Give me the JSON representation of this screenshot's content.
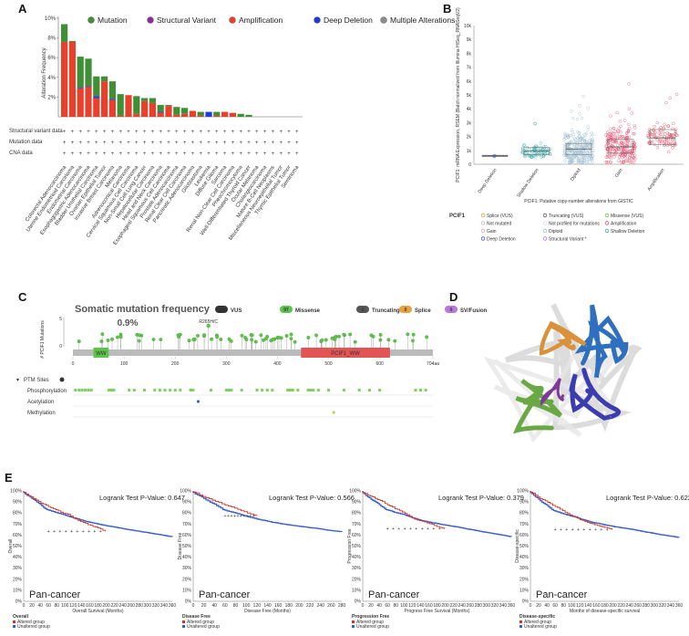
{
  "panels": {
    "A": "A",
    "B": "B",
    "C": "C",
    "D": "D",
    "E": "E"
  },
  "panelA": {
    "legend": [
      {
        "label": "Mutation",
        "color": "#3e8f35"
      },
      {
        "label": "Structural Variant",
        "color": "#8b2c9b"
      },
      {
        "label": "Amplification",
        "color": "#e8402a"
      },
      {
        "label": "Deep Deletion",
        "color": "#1f3bdb"
      },
      {
        "label": "Multiple Alterations",
        "color": "#8c8c8c"
      }
    ],
    "row_labels": [
      "Structural variant data",
      "Mutation data",
      "CNA data"
    ],
    "ylabel": "Alteration Frequency"
  },
  "chart_data": [
    {
      "type": "bar",
      "title": "",
      "ylabel": "Alteration Frequency",
      "ylim": [
        0,
        10
      ],
      "yticks": [
        "10%",
        "8%",
        "6%",
        "4%",
        "2%"
      ],
      "categories": [
        "Colorectal Adenocarcinoma",
        "Uterine Endometrioid Carcinoma",
        "Endometrial Carcinoma",
        "Esophagogastric Adenocarcinoma",
        "Bladder Urothelial Carcinoma",
        "Ovarian Epithelial Tumor",
        "Invasive Breast Carcinoma",
        "Melanoma",
        "Adrenocortical Carcinoma",
        "Cervical Squamous Cell Carcinoma",
        "Non-Small Cell Lung Cancer",
        "Hepatocellular Carcinoma",
        "Head and Neck Carcinoma",
        "Esophageal Squamous Cell Carcinoma",
        "Prostate Adenocarcinoma",
        "Renal Clear Cell Carcinoma",
        "Pancreatic Adenocarcinoma",
        "Glioblastoma",
        "Leukemia",
        "Diffuse Glioma",
        "Sarcoma",
        "Renal Non-Clear Cell Carcinoma",
        "Pheochromocytoma",
        "Well-Differentiated Thyroid Cancer",
        "Ocular Melanoma",
        "Cholangiocarcinoma",
        "Mature B-Cell Neoplasms",
        "Miscellaneous Neuroepithelial Tumor",
        "Thymic Epithelial Tumor",
        "Seminoma"
      ],
      "series": [
        {
          "name": "Amplification",
          "color": "#e8402a",
          "values": [
            7.6,
            7.6,
            2.9,
            3.0,
            1.9,
            3.6,
            1.7,
            0.1,
            2.2,
            0.3,
            1.6,
            1.4,
            0.4,
            1.1,
            0.2,
            0.3,
            0.6,
            0.1,
            0.0,
            0.1,
            0.5,
            0.4,
            0.0,
            0.0,
            0.0,
            0,
            0,
            0,
            0,
            0
          ]
        },
        {
          "name": "Deep Deletion",
          "color": "#1f3bdb",
          "values": [
            0,
            0,
            0.1,
            0.0,
            0.2,
            0.0,
            0.1,
            0,
            0,
            0,
            0,
            0,
            0.1,
            0,
            0,
            0,
            0,
            0,
            0.5,
            0,
            0,
            0,
            0,
            0,
            0,
            0,
            0,
            0,
            0,
            0
          ]
        },
        {
          "name": "Structural Variant",
          "color": "#8b2c9b",
          "values": [
            0,
            0,
            0,
            0.1,
            0,
            0,
            0,
            0,
            0,
            0,
            0,
            0,
            0,
            0,
            0,
            0,
            0,
            0,
            0,
            0,
            0,
            0,
            0,
            0,
            0,
            0,
            0,
            0,
            0,
            0
          ]
        },
        {
          "name": "Mutation",
          "color": "#3e8f35",
          "values": [
            1.8,
            0.1,
            3.1,
            2.8,
            2.0,
            0.5,
            1.8,
            2.2,
            0.0,
            1.8,
            0.3,
            0.5,
            0.7,
            0.1,
            0.8,
            0.6,
            0.0,
            0.4,
            0.0,
            0.4,
            0.0,
            0.0,
            0.3,
            0.2,
            0.0,
            0,
            0,
            0,
            0,
            0
          ]
        }
      ]
    },
    {
      "type": "scatter",
      "title": "",
      "ylabel": "PCIF1: mRNA Expression, RSEM (Batch normalized from Illumina HiSeq_RNASeqV2)",
      "xlabel": "PCIF1: Putative copy-number alterations from GISTIC",
      "categories": [
        "Deep Deletion",
        "Shallow Deletion",
        "Diploid",
        "Gain",
        "Amplification"
      ],
      "yticks": [
        "10k",
        "9k",
        "8k",
        "7k",
        "6k",
        "5k",
        "4k",
        "3k",
        "2k",
        "1k",
        "0"
      ],
      "ylim": [
        0,
        10000
      ],
      "medians": [
        600,
        950,
        1100,
        1250,
        1900
      ],
      "q1": [
        550,
        700,
        700,
        800,
        1400
      ],
      "q3": [
        650,
        1200,
        1500,
        1800,
        2500
      ],
      "legend_title": "PCIF1",
      "legend": [
        "Splice (VUS)",
        "Truncating (VUS)",
        "Missense (VUS)",
        "Not mutated",
        "Not profiled for mutations",
        "Amplification",
        "Gain",
        "Diploid",
        "Shallow Deletion",
        "Deep Deletion",
        "Structural Variant *"
      ]
    },
    {
      "type": "bar",
      "title": "Somatic mutation frequency",
      "subtitle": "0.9%",
      "ylabel": "# PCIF1 Mutations",
      "yticks": [
        "5",
        "0"
      ],
      "xticks": [
        "0",
        "100",
        "200",
        "300",
        "400",
        "500",
        "600",
        "704aa"
      ],
      "domains": [
        "WW",
        "PCIF1_WW"
      ],
      "hotspot": "R265H/C",
      "badges": [
        {
          "count": "113",
          "label": "VUS",
          "color": "#333333"
        },
        {
          "count": "97",
          "label": "Missense",
          "color": "#5ec34b"
        },
        {
          "count": "0",
          "label": "Truncating",
          "color": "#555555"
        },
        {
          "count": "0",
          "label": "Splice",
          "color": "#e8a040"
        },
        {
          "count": "0",
          "label": "SV/Fusion",
          "color": "#b978d9"
        }
      ],
      "ptm_title": "PTM Sites",
      "ptm_rows": [
        "Phosphorylation",
        "Acetylation",
        "Methylation"
      ]
    },
    {
      "type": "line",
      "title": "Kaplan-Meier survival curves",
      "plots": [
        {
          "pvalue": "Logrank Test P-Value: 0.647",
          "ylabel": "Overall",
          "xlabel": "Overall Survival (Months)",
          "legend_title": "Overall",
          "xticks": [
            "0",
            "20",
            "40",
            "60",
            "80",
            "100",
            "120",
            "140",
            "160",
            "180",
            "200",
            "220",
            "240",
            "260",
            "280",
            "300",
            "320",
            "340",
            "360"
          ]
        },
        {
          "pvalue": "Logrank Test P-Value: 0.566",
          "ylabel": "Disease Free",
          "xlabel": "Disease Free (Months)",
          "legend_title": "Disease Free",
          "xticks": [
            "0",
            "20",
            "40",
            "60",
            "80",
            "100",
            "120",
            "140",
            "160",
            "180",
            "200",
            "220",
            "240",
            "260",
            "280"
          ]
        },
        {
          "pvalue": "Logrank Test P-Value: 0.379",
          "ylabel": "Progression Free",
          "xlabel": "Progress Free Survival (Months)",
          "legend_title": "Progression Free",
          "xticks": [
            "0",
            "20",
            "40",
            "60",
            "80",
            "100",
            "120",
            "140",
            "160",
            "180",
            "200",
            "220",
            "240",
            "260",
            "280",
            "300",
            "320",
            "340",
            "360"
          ]
        },
        {
          "pvalue": "Logrank Test P-Value: 0.622",
          "ylabel": "Disease-specific",
          "xlabel": "Months of disease-specific survival",
          "legend_title": "Disease-specific",
          "xticks": [
            "0",
            "20",
            "40",
            "60",
            "80",
            "100",
            "120",
            "140",
            "160",
            "180",
            "200",
            "220",
            "240",
            "260",
            "280",
            "300",
            "320",
            "340",
            "360"
          ]
        }
      ],
      "yticks": [
        "100%",
        "90%",
        "80%",
        "70%",
        "60%",
        "50%",
        "40%",
        "30%",
        "20%",
        "10%",
        "0%"
      ],
      "caption": "Pan-cancer",
      "groups": [
        {
          "label": "Altered group",
          "color": "#d7301f"
        },
        {
          "label": "Unaltered group",
          "color": "#3a5fcd"
        }
      ]
    }
  ]
}
